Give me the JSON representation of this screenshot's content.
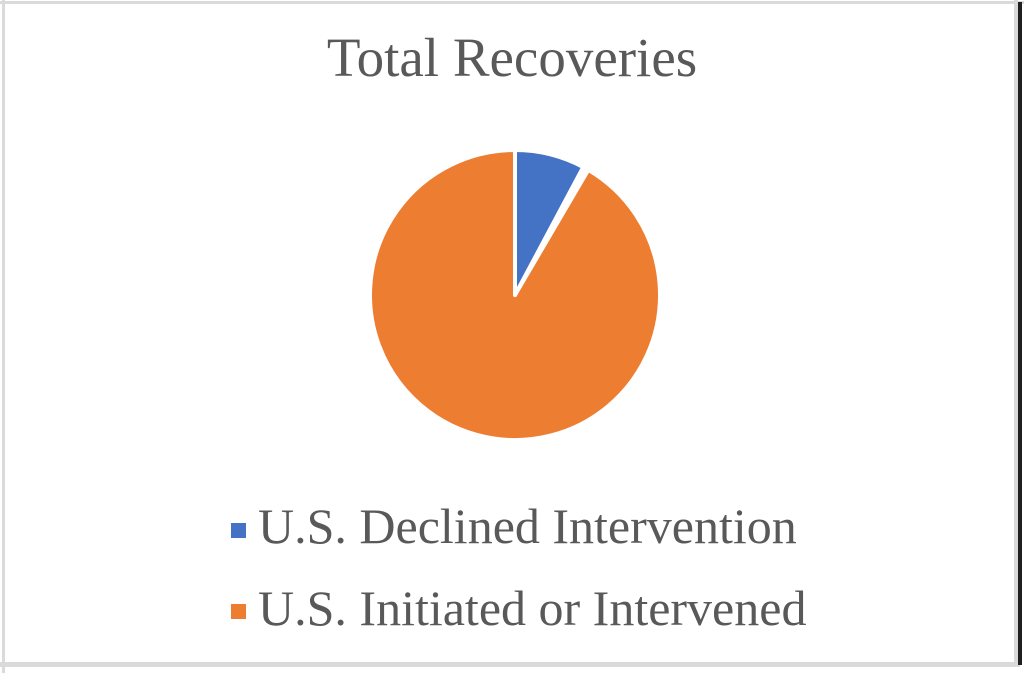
{
  "frame": {
    "background": "#ffffff",
    "border_light": "#dadada",
    "border_dark": "#202020"
  },
  "chart_data": {
    "type": "pie",
    "title": "Total Recoveries",
    "labels": [
      "U.S. Declined Intervention",
      "U.S. Initiated or Intervened"
    ],
    "values_pct": [
      7.8,
      92.2
    ],
    "colors": [
      "#4472C4",
      "#ED7D31"
    ],
    "slice_border_color": "#ffffff",
    "title_color": "#595959",
    "legend_text_color": "#595959",
    "legend_position": "bottom",
    "start_angle_deg": 0,
    "data_labels": false
  }
}
